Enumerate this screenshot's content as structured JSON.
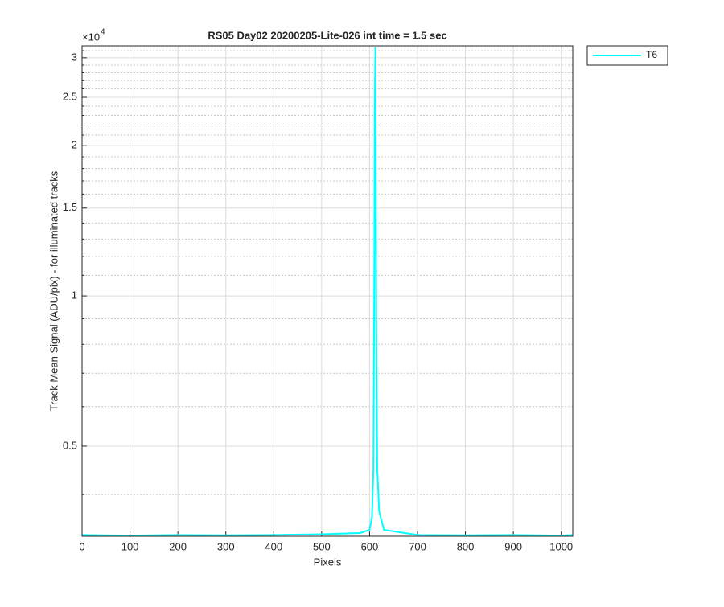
{
  "chart_data": {
    "type": "line",
    "title": "RS05 Day02 20200205-Lite-026 int time = 1.5 sec",
    "x_label": "Pixels",
    "y_label": "Track Mean Signal (ADU/pix) - for illuminated tracks",
    "y_multiplier": "×10",
    "y_multiplier_exponent": "4",
    "x": [
      0,
      100,
      200,
      300,
      400,
      500,
      580,
      600,
      605,
      608,
      610,
      611,
      612,
      613,
      614,
      616,
      620,
      630,
      700,
      800,
      900,
      1000,
      1023
    ],
    "series": [
      {
        "name": "T6",
        "color": "#00ffff",
        "values": [
          3320,
          3310,
          3320,
          3315,
          3320,
          3330,
          3350,
          3400,
          3600,
          4500,
          12000,
          25000,
          31500,
          20000,
          9000,
          4500,
          3700,
          3400,
          3320,
          3315,
          3320,
          3310,
          3320
        ]
      }
    ],
    "xlim": [
      0,
      1024
    ],
    "xticks": [
      0,
      100,
      200,
      300,
      400,
      500,
      600,
      700,
      800,
      900,
      1000
    ],
    "ylim": [
      3300,
      31700
    ],
    "yscale": "log",
    "yticks": [
      {
        "value": 5000,
        "label": "0.5"
      },
      {
        "value": 10000,
        "label": "1"
      },
      {
        "value": 15000,
        "label": "1.5"
      },
      {
        "value": 20000,
        "label": "2"
      },
      {
        "value": 25000,
        "label": "2.5"
      },
      {
        "value": 30000,
        "label": "3"
      }
    ],
    "yminor": [
      4000,
      6000,
      7000,
      8000,
      9000,
      11000,
      12000,
      13000,
      14000,
      16000,
      17000,
      18000,
      19000,
      21000,
      22000,
      23000,
      24000,
      26000,
      27000,
      28000,
      29000,
      31000
    ],
    "grid": true,
    "legend": "outside-top-right"
  }
}
